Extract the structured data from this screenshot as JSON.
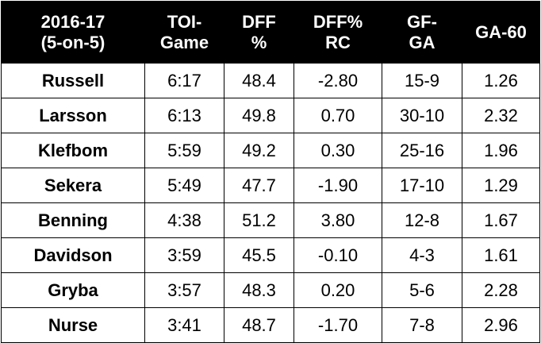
{
  "chart_data": {
    "type": "table",
    "columns": [
      [
        "2016-17",
        "(5-on-5)"
      ],
      [
        "TOI-",
        "Game"
      ],
      [
        "DFF",
        "%"
      ],
      [
        "DFF%",
        "RC"
      ],
      [
        "GF-",
        "GA"
      ],
      [
        "GA-60"
      ]
    ],
    "rows": [
      [
        "Russell",
        "6:17",
        "48.4",
        "-2.80",
        "15-9",
        "1.26"
      ],
      [
        "Larsson",
        "6:13",
        "49.8",
        "0.70",
        "30-10",
        "2.32"
      ],
      [
        "Klefbom",
        "5:59",
        "49.2",
        "0.30",
        "25-16",
        "1.96"
      ],
      [
        "Sekera",
        "5:49",
        "47.7",
        "-1.90",
        "17-10",
        "1.29"
      ],
      [
        "Benning",
        "4:38",
        "51.2",
        "3.80",
        "12-8",
        "1.67"
      ],
      [
        "Davidson",
        "3:59",
        "45.5",
        "-0.10",
        "4-3",
        "1.61"
      ],
      [
        "Gryba",
        "3:57",
        "48.3",
        "0.20",
        "5-6",
        "2.28"
      ],
      [
        "Nurse",
        "3:41",
        "48.7",
        "-1.70",
        "7-8",
        "2.96"
      ]
    ]
  },
  "colors": {
    "header_background": "#000000",
    "header_text": "#ffffff",
    "body_background": "#ffffff",
    "border": "#000000"
  }
}
